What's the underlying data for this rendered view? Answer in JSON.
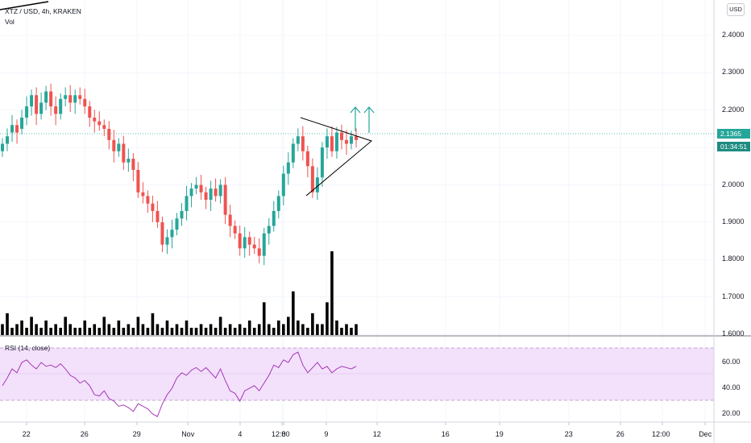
{
  "header": {
    "symbol_line": "XTZ / USD, 4h, KRAKEN",
    "volume_label": "Vol",
    "currency_button": "USD"
  },
  "price_tag": {
    "price": "2.1365",
    "countdown": "01:34:51"
  },
  "rsi": {
    "label": "RSI (14, close)"
  },
  "colors": {
    "up": "#26a69a",
    "down": "#ef5350",
    "volume": "#000000",
    "rsi_line": "#9c27b0",
    "rsi_band": "#f3e0fb"
  },
  "chart_data": {
    "type": "candlestick",
    "price_axis": {
      "ticks": [
        "2.4000",
        "2.3000",
        "2.2000",
        "2.1000",
        "2.0000",
        "1.9000",
        "1.8000",
        "1.7000",
        "1.6000"
      ],
      "range": [
        1.59,
        2.52
      ]
    },
    "rsi_axis": {
      "ticks": [
        "60.00",
        "40.00",
        "20.00"
      ],
      "range": [
        17,
        69
      ],
      "upper_band": 70,
      "lower_band": 30
    },
    "x_ticks": [
      "22",
      "26",
      "29",
      "Nov",
      "4",
      "8",
      "12:00",
      "9",
      "12",
      "16",
      "19",
      "23",
      "26",
      "12:00",
      "Dec"
    ],
    "current_price": 2.1365,
    "candles_close": [
      2.11,
      2.13,
      2.16,
      2.14,
      2.18,
      2.21,
      2.24,
      2.19,
      2.22,
      2.25,
      2.21,
      2.19,
      2.23,
      2.24,
      2.22,
      2.24,
      2.23,
      2.21,
      2.18,
      2.17,
      2.16,
      2.15,
      2.12,
      2.09,
      2.11,
      2.06,
      2.07,
      2.04,
      1.98,
      1.97,
      1.95,
      1.93,
      1.9,
      1.84,
      1.86,
      1.88,
      1.91,
      1.93,
      1.97,
      1.99,
      2.0,
      1.98,
      1.96,
      1.99,
      1.97,
      2.0,
      1.92,
      1.89,
      1.87,
      1.83,
      1.86,
      1.84,
      1.83,
      1.81,
      1.87,
      1.89,
      1.93,
      1.97,
      2.03,
      2.06,
      2.11,
      2.13,
      2.09,
      2.05,
      1.98,
      2.02,
      2.1,
      2.13,
      2.09,
      2.14,
      2.12,
      2.11,
      2.13,
      2.12
    ],
    "candles_open": [
      2.09,
      2.11,
      2.14,
      2.16,
      2.15,
      2.18,
      2.21,
      2.24,
      2.19,
      2.22,
      2.25,
      2.21,
      2.19,
      2.23,
      2.24,
      2.22,
      2.24,
      2.23,
      2.21,
      2.18,
      2.17,
      2.16,
      2.15,
      2.12,
      2.09,
      2.11,
      2.06,
      2.07,
      2.04,
      1.98,
      1.97,
      1.95,
      1.93,
      1.9,
      1.84,
      1.86,
      1.88,
      1.91,
      1.93,
      1.97,
      1.99,
      2.0,
      1.98,
      1.96,
      1.99,
      1.97,
      2.0,
      1.92,
      1.89,
      1.87,
      1.83,
      1.86,
      1.84,
      1.83,
      1.81,
      1.87,
      1.89,
      1.93,
      1.97,
      2.03,
      2.06,
      2.11,
      2.13,
      2.09,
      2.05,
      1.98,
      2.02,
      2.1,
      2.13,
      2.09,
      2.14,
      2.12,
      2.11,
      2.13
    ],
    "volume": [
      3,
      6,
      2,
      3,
      4,
      2,
      5,
      3,
      2,
      4,
      2,
      3,
      2,
      5,
      3,
      2,
      2,
      4,
      2,
      3,
      2,
      5,
      3,
      2,
      4,
      2,
      3,
      2,
      5,
      3,
      2,
      6,
      3,
      2,
      4,
      2,
      3,
      2,
      4,
      2,
      2,
      3,
      2,
      3,
      2,
      5,
      2,
      3,
      2,
      3,
      2,
      4,
      2,
      3,
      9,
      3,
      2,
      4,
      3,
      5,
      12,
      4,
      3,
      2,
      6,
      3,
      3,
      9,
      23,
      4,
      2,
      3,
      2,
      3
    ],
    "rsi_values": [
      42,
      48,
      55,
      52,
      60,
      62,
      58,
      55,
      60,
      57,
      58,
      56,
      59,
      55,
      50,
      48,
      44,
      46,
      42,
      35,
      34,
      38,
      32,
      30,
      26,
      27,
      25,
      22,
      28,
      26,
      24,
      20,
      18,
      28,
      35,
      40,
      48,
      52,
      50,
      54,
      56,
      53,
      56,
      52,
      48,
      55,
      46,
      38,
      36,
      30,
      38,
      40,
      42,
      38,
      44,
      50,
      58,
      56,
      62,
      60,
      66,
      68,
      58,
      52,
      56,
      60,
      55,
      57,
      52,
      55,
      57,
      56,
      55,
      57
    ]
  }
}
